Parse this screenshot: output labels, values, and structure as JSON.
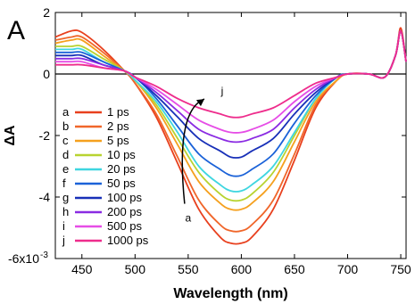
{
  "panel_label": "A",
  "chart_data": {
    "type": "line",
    "xlabel": "Wavelength (nm)",
    "ylabel": "ΔA",
    "xlim": [
      425,
      755
    ],
    "ylim": [
      -0.006,
      0.002
    ],
    "x_ticks": [
      450,
      500,
      550,
      600,
      650,
      700,
      750
    ],
    "x_tick_labels": [
      "450",
      "500",
      "550",
      "600",
      "650",
      "700",
      "750"
    ],
    "y_ticks": [
      -0.006,
      -0.004,
      -0.002,
      0,
      0.002
    ],
    "y_tick_labels": [
      "-6x10",
      "-4",
      "-2",
      "0",
      "2"
    ],
    "y_tick_exponent": "-3",
    "zero_line": true,
    "grid": false,
    "legend_position": "left",
    "annotations": [
      {
        "text": "a",
        "x": 550,
        "y": -0.0048
      },
      {
        "text": "j",
        "x": 582,
        "y": -0.00067
      }
    ],
    "x": [
      425,
      440,
      450,
      470,
      490,
      500,
      520,
      540,
      560,
      580,
      590,
      600,
      610,
      630,
      650,
      670,
      690,
      700,
      720,
      735,
      745,
      750,
      755
    ],
    "series": [
      {
        "letter": "a",
        "name": "1 ps",
        "color": "#e8401e",
        "values": [
          0.0012,
          0.0014,
          0.00135,
          0.0008,
          0.0001,
          -0.0003,
          -0.0014,
          -0.0029,
          -0.0044,
          -0.0053,
          -0.0055,
          -0.0055,
          -0.0053,
          -0.0044,
          -0.0028,
          -0.0011,
          -0.0002,
          0.0,
          0.0,
          -0.0001,
          0.0006,
          0.0015,
          0.0004
        ]
      },
      {
        "letter": "b",
        "name": "2 ps",
        "color": "#f0662a",
        "values": [
          0.0011,
          0.0012,
          0.0012,
          0.0007,
          0.0001,
          -0.0003,
          -0.0013,
          -0.0027,
          -0.0041,
          -0.0049,
          -0.0051,
          -0.0051,
          -0.0049,
          -0.0041,
          -0.0026,
          -0.001,
          -0.0002,
          0.0,
          0.0,
          -0.0001,
          0.0006,
          0.0014,
          0.0004
        ]
      },
      {
        "letter": "c",
        "name": "5 ps",
        "color": "#f5a01e",
        "values": [
          0.001,
          0.0011,
          0.0011,
          0.0006,
          0.0001,
          -0.0002,
          -0.0011,
          -0.0023,
          -0.0035,
          -0.0042,
          -0.0044,
          -0.0044,
          -0.0042,
          -0.0035,
          -0.0022,
          -0.0009,
          -0.0002,
          0.0,
          0.0,
          -0.0001,
          0.0006,
          0.0014,
          0.0004
        ]
      },
      {
        "letter": "d",
        "name": "10 ps",
        "color": "#b8d330",
        "values": [
          0.0009,
          0.0009,
          0.0009,
          0.0005,
          0.0001,
          -0.0002,
          -0.001,
          -0.0021,
          -0.0032,
          -0.0039,
          -0.0041,
          -0.0041,
          -0.0039,
          -0.0032,
          -0.002,
          -0.0008,
          -0.0001,
          0.0,
          0.0,
          -0.0001,
          0.0006,
          0.0014,
          0.0004
        ]
      },
      {
        "letter": "e",
        "name": "20 ps",
        "color": "#3fd6e0",
        "values": [
          0.0008,
          0.0008,
          0.0008,
          0.0004,
          0.0001,
          -0.0002,
          -0.0009,
          -0.0019,
          -0.003,
          -0.0036,
          -0.0038,
          -0.0038,
          -0.0036,
          -0.003,
          -0.0019,
          -0.0008,
          -0.0001,
          0.0,
          0.0,
          -0.0001,
          0.0006,
          0.0014,
          0.0004
        ]
      },
      {
        "letter": "f",
        "name": "50 ps",
        "color": "#1b62d8",
        "values": [
          0.0007,
          0.0007,
          0.0007,
          0.0004,
          0.0001,
          -0.0001,
          -0.0008,
          -0.0017,
          -0.0026,
          -0.0031,
          -0.0033,
          -0.0033,
          -0.0031,
          -0.0026,
          -0.0016,
          -0.0007,
          -0.0001,
          0.0,
          0.0,
          -0.0001,
          0.0006,
          0.0014,
          0.0004
        ]
      },
      {
        "letter": "g",
        "name": "100 ps",
        "color": "#1830b8",
        "values": [
          0.0006,
          0.0006,
          0.0006,
          0.0003,
          0.0001,
          -0.0001,
          -0.0007,
          -0.0014,
          -0.0021,
          -0.0025,
          -0.0027,
          -0.0027,
          -0.0025,
          -0.0021,
          -0.0013,
          -0.0006,
          -0.0001,
          0.0,
          0.0,
          -0.0001,
          0.0006,
          0.0014,
          0.0004
        ]
      },
      {
        "letter": "h",
        "name": "200 ps",
        "color": "#8a2be2",
        "values": [
          0.0005,
          0.0005,
          0.0005,
          0.0003,
          0.0001,
          -0.0001,
          -0.0006,
          -0.0012,
          -0.0018,
          -0.0021,
          -0.0022,
          -0.0022,
          -0.0021,
          -0.0018,
          -0.0011,
          -0.0005,
          -0.0001,
          0.0,
          0.0,
          -0.0001,
          0.0006,
          0.0014,
          0.0004
        ]
      },
      {
        "letter": "i",
        "name": "500 ps",
        "color": "#e64de6",
        "values": [
          0.0004,
          0.0004,
          0.0004,
          0.0002,
          0.0001,
          -0.0001,
          -0.0005,
          -0.001,
          -0.0015,
          -0.0018,
          -0.0019,
          -0.0019,
          -0.0018,
          -0.0015,
          -0.0009,
          -0.0004,
          -0.0001,
          0.0,
          0.0,
          -0.0001,
          0.0006,
          0.0014,
          0.0004
        ]
      },
      {
        "letter": "j",
        "name": "1000 ps",
        "color": "#ee2c8c",
        "values": [
          0.0003,
          0.0003,
          0.0003,
          0.0002,
          0.0001,
          -0.0001,
          -0.0004,
          -0.0008,
          -0.0011,
          -0.0013,
          -0.0014,
          -0.0014,
          -0.0013,
          -0.0011,
          -0.0007,
          -0.0003,
          -0.0001,
          0.0,
          0.0,
          -0.0001,
          0.0006,
          0.0014,
          0.0004
        ]
      }
    ]
  }
}
